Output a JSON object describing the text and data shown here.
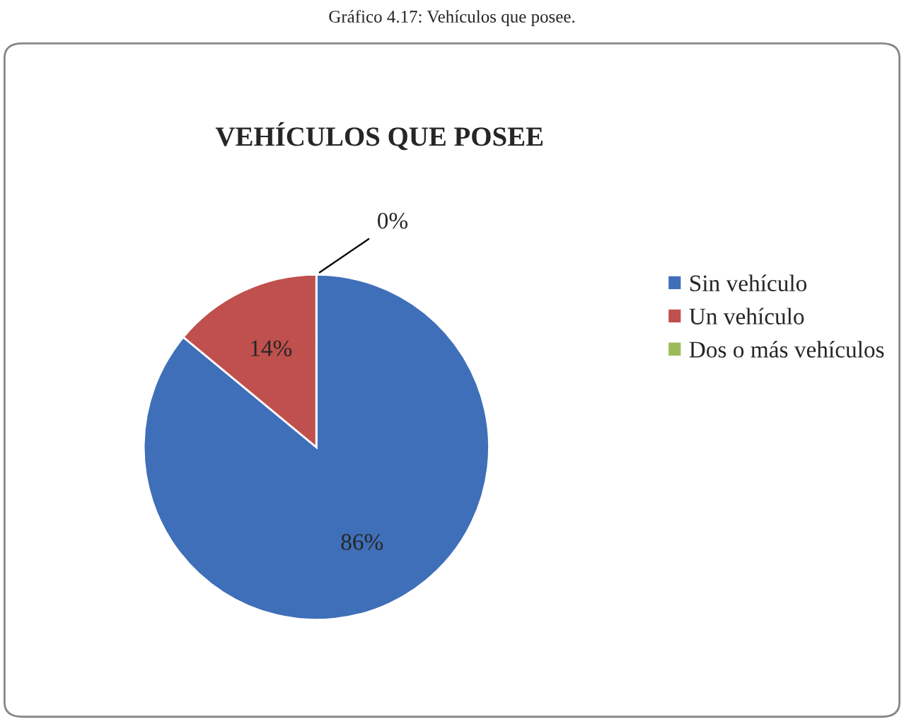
{
  "chart_data": {
    "type": "pie",
    "title": "VEHÍCULOS QUE POSEE",
    "annotations": [
      "Gráfico 4.17: Vehículos que posee."
    ],
    "categories": [
      "Sin vehículo",
      "Un vehículo",
      "Dos o más vehículos"
    ],
    "values": [
      86,
      14,
      0
    ],
    "colors": [
      "#3f6fb8",
      "#c0504d",
      "#9bbb59"
    ],
    "value_labels": [
      "86%",
      "14%",
      "0%"
    ],
    "legend": "right"
  }
}
